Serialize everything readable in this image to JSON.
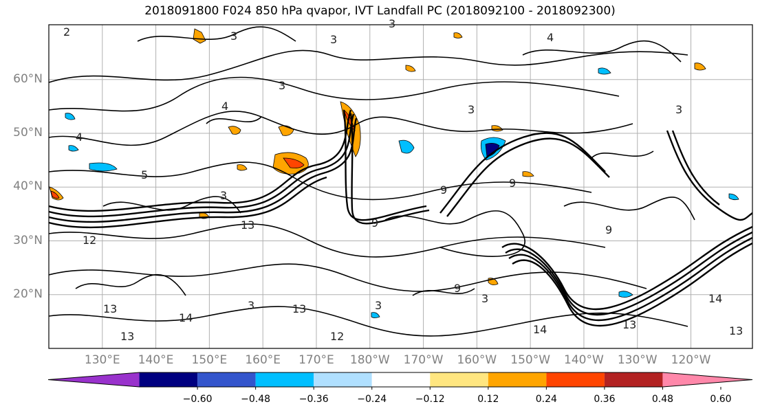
{
  "title": "2018091800 F024 850 hPa qvapor, IVT Landfall PC (2018092100 - 2018092300)",
  "lat_ticks": [
    {
      "label": "60°N",
      "value": 60
    },
    {
      "label": "50°N",
      "value": 50
    },
    {
      "label": "40°N",
      "value": 40
    },
    {
      "label": "30°N",
      "value": 30
    },
    {
      "label": "20°N",
      "value": 20
    }
  ],
  "lon_ticks": [
    {
      "label": "130°E",
      "value": 130
    },
    {
      "label": "140°E",
      "value": 140
    },
    {
      "label": "150°E",
      "value": 150
    },
    {
      "label": "160°E",
      "value": 160
    },
    {
      "label": "170°E",
      "value": 170
    },
    {
      "label": "180°W",
      "value": 180
    },
    {
      "label": "170°W",
      "value": 190
    },
    {
      "label": "160°W",
      "value": 200
    },
    {
      "label": "150°W",
      "value": 210
    },
    {
      "label": "140°W",
      "value": 220
    },
    {
      "label": "130°W",
      "value": 230
    },
    {
      "label": "120°W",
      "value": 240
    }
  ],
  "colorbar": {
    "labels": [
      "−0.60",
      "−0.48",
      "−0.36",
      "−0.24",
      "−0.12",
      "0.12",
      "0.24",
      "0.36",
      "0.48",
      "0.60"
    ],
    "colors": [
      "#9932cc",
      "#000080",
      "#3355cc",
      "#00bfff",
      "#b0e0ff",
      "#ffffff",
      "#ffe680",
      "#ffa500",
      "#ff4500",
      "#b22222",
      "#ff88aa"
    ]
  },
  "contour_labels": [
    "2",
    "3",
    "4",
    "5",
    "9",
    "12",
    "13",
    "14"
  ]
}
